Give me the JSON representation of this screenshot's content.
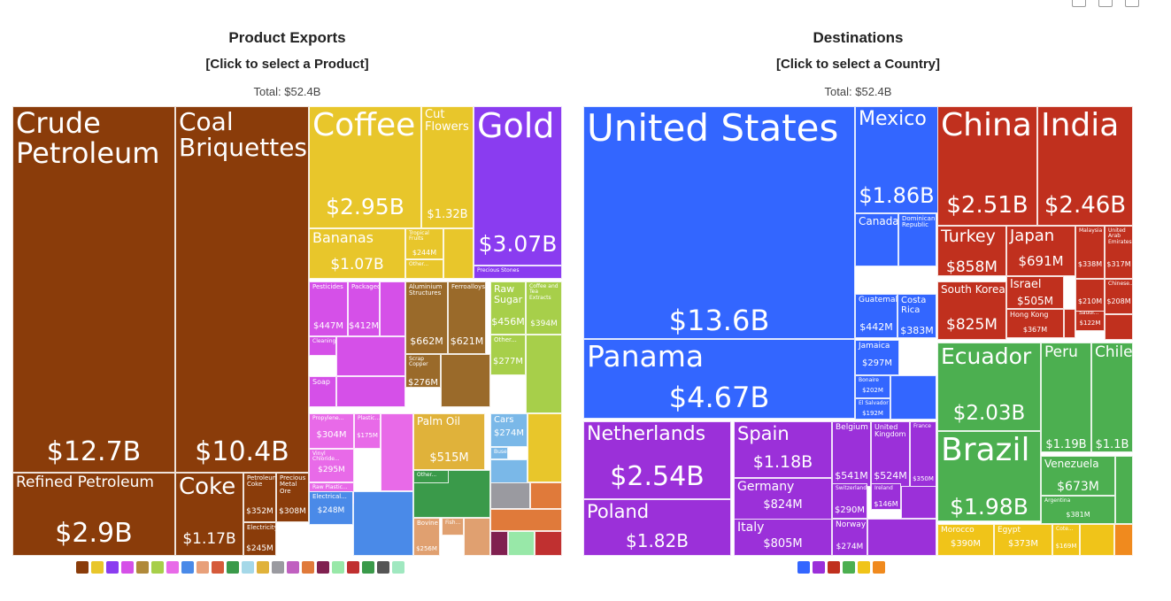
{
  "toolbar": {
    "icons": [
      "download-icon",
      "image-icon",
      "share-icon"
    ]
  },
  "products_panel": {
    "title": "Product Exports",
    "subtitle": "[Click to select a Product]",
    "total": "Total: $52.4B"
  },
  "destinations_panel": {
    "title": "Destinations",
    "subtitle": "[Click to select a Country]",
    "total": "Total: $52.4B"
  },
  "chart_data": [
    {
      "type": "treemap",
      "title": "Product Exports",
      "total": "$52.4B",
      "items": [
        {
          "name": "Crude Petroleum",
          "value": "$12.7B",
          "color": "#8a3c0a"
        },
        {
          "name": "Coal Briquettes",
          "value": "$10.4B",
          "color": "#8a3c0a"
        },
        {
          "name": "Refined Petroleum",
          "value": "$2.9B",
          "color": "#8a3c0a"
        },
        {
          "name": "Coke",
          "value": "$1.17B",
          "color": "#8a3c0a"
        },
        {
          "name": "Petroleum Coke",
          "value": "$352M",
          "color": "#8a3c0a"
        },
        {
          "name": "Precious Metal Ore",
          "value": "$308M",
          "color": "#8a3c0a"
        },
        {
          "name": "Electricity",
          "value": "$245M",
          "color": "#8a3c0a"
        },
        {
          "name": "Coffee",
          "value": "$2.95B",
          "color": "#e8c62b"
        },
        {
          "name": "Cut Flowers",
          "value": "$1.32B",
          "color": "#e8c62b"
        },
        {
          "name": "Bananas",
          "value": "$1.07B",
          "color": "#e8c62b"
        },
        {
          "name": "Tropical Fruits",
          "value": "$244M",
          "color": "#e8c62b"
        },
        {
          "name": "Other...",
          "value": "",
          "color": "#e8c62b"
        },
        {
          "name": "Gold",
          "value": "$3.07B",
          "color": "#8a3cf0"
        },
        {
          "name": "Precious Stones",
          "value": "",
          "color": "#8a3cf0"
        },
        {
          "name": "Pesticides",
          "value": "$447M",
          "color": "#d550e8"
        },
        {
          "name": "Packaged...",
          "value": "$412M",
          "color": "#d550e8"
        },
        {
          "name": "Cleaning...",
          "value": "$140M",
          "color": "#d550e8"
        },
        {
          "name": "Soap",
          "value": "",
          "color": "#d550e8"
        },
        {
          "name": "Aluminium Structures",
          "value": "$662M",
          "color": "#9a6a2a"
        },
        {
          "name": "Ferroalloys",
          "value": "$621M",
          "color": "#9a6a2a"
        },
        {
          "name": "Scrap Copper",
          "value": "$276M",
          "color": "#9a6a2a"
        },
        {
          "name": "Raw Sugar",
          "value": "$456M",
          "color": "#a7cf4a"
        },
        {
          "name": "Coffee and Tea Extracts",
          "value": "$394M",
          "color": "#a7cf4a"
        },
        {
          "name": "Other...",
          "value": "$277M",
          "color": "#a7cf4a"
        },
        {
          "name": "Propylene...",
          "value": "$304M",
          "color": "#e86ae8"
        },
        {
          "name": "Plastic...",
          "value": "$175M",
          "color": "#e86ae8"
        },
        {
          "name": "Vinyl Chloride...",
          "value": "$295M",
          "color": "#e86ae8"
        },
        {
          "name": "Raw Plastic...",
          "value": "",
          "color": "#e86ae8"
        },
        {
          "name": "Palm Oil",
          "value": "$515M",
          "color": "#e0b23a"
        },
        {
          "name": "Cars",
          "value": "$274M",
          "color": "#7ab8e8"
        },
        {
          "name": "Buses",
          "value": "",
          "color": "#7ab8e8"
        },
        {
          "name": "Electrical...",
          "value": "$248M",
          "color": "#4a8ae8"
        },
        {
          "name": "Other...",
          "value": "",
          "color": "#3a9a4a"
        },
        {
          "name": "Bovine",
          "value": "$256M",
          "color": "#e0a070"
        },
        {
          "name": "Fish...",
          "value": "",
          "color": "#e0a070"
        }
      ]
    },
    {
      "type": "treemap",
      "title": "Destinations",
      "total": "$52.4B",
      "items": [
        {
          "name": "United States",
          "value": "$13.6B",
          "color": "#3366ff"
        },
        {
          "name": "Panama",
          "value": "$4.67B",
          "color": "#3366ff"
        },
        {
          "name": "Mexico",
          "value": "$1.86B",
          "color": "#3366ff"
        },
        {
          "name": "Canada",
          "value": "$728M",
          "color": "#3366ff"
        },
        {
          "name": "Dominican Republic",
          "value": "$610M",
          "color": "#3366ff"
        },
        {
          "name": "Guatemala",
          "value": "$442M",
          "color": "#3366ff"
        },
        {
          "name": "Costa Rica",
          "value": "$383M",
          "color": "#3366ff"
        },
        {
          "name": "Jamaica",
          "value": "$297M",
          "color": "#3366ff"
        },
        {
          "name": "Bonaire",
          "value": "$202M",
          "color": "#3366ff"
        },
        {
          "name": "El Salvador",
          "value": "$192M",
          "color": "#3366ff"
        },
        {
          "name": "Netherlands",
          "value": "$2.54B",
          "color": "#9b30d9"
        },
        {
          "name": "Poland",
          "value": "$1.82B",
          "color": "#9b30d9"
        },
        {
          "name": "Spain",
          "value": "$1.18B",
          "color": "#9b30d9"
        },
        {
          "name": "Germany",
          "value": "$824M",
          "color": "#9b30d9"
        },
        {
          "name": "Italy",
          "value": "$805M",
          "color": "#9b30d9"
        },
        {
          "name": "Belgium",
          "value": "$541M",
          "color": "#9b30d9"
        },
        {
          "name": "United Kingdom",
          "value": "$524M",
          "color": "#9b30d9"
        },
        {
          "name": "France",
          "value": "$350M",
          "color": "#9b30d9"
        },
        {
          "name": "Switzerland",
          "value": "$290M",
          "color": "#9b30d9"
        },
        {
          "name": "Ireland",
          "value": "$146M",
          "color": "#9b30d9"
        },
        {
          "name": "Norway",
          "value": "$274M",
          "color": "#9b30d9"
        },
        {
          "name": "China",
          "value": "$2.51B",
          "color": "#c0301e"
        },
        {
          "name": "India",
          "value": "$2.46B",
          "color": "#c0301e"
        },
        {
          "name": "Turkey",
          "value": "$858M",
          "color": "#c0301e"
        },
        {
          "name": "South Korea",
          "value": "$825M",
          "color": "#c0301e"
        },
        {
          "name": "Japan",
          "value": "$691M",
          "color": "#c0301e"
        },
        {
          "name": "Israel",
          "value": "$505M",
          "color": "#c0301e"
        },
        {
          "name": "Hong Kong",
          "value": "$367M",
          "color": "#c0301e"
        },
        {
          "name": "Malaysia",
          "value": "$338M",
          "color": "#c0301e"
        },
        {
          "name": "United Arab Emirates",
          "value": "$317M",
          "color": "#c0301e"
        },
        {
          "name": "Chinese...",
          "value": "$208M",
          "color": "#c0301e"
        },
        {
          "name": "Saudi...",
          "value": "$122M",
          "color": "#c0301e"
        },
        {
          "name": "",
          "value": "$210M",
          "color": "#c0301e"
        },
        {
          "name": "Ecuador",
          "value": "$2.03B",
          "color": "#4caf50"
        },
        {
          "name": "Brazil",
          "value": "$1.98B",
          "color": "#4caf50"
        },
        {
          "name": "Peru",
          "value": "$1.19B",
          "color": "#4caf50"
        },
        {
          "name": "Chile",
          "value": "$1.1B",
          "color": "#4caf50"
        },
        {
          "name": "Venezuela",
          "value": "$673M",
          "color": "#4caf50"
        },
        {
          "name": "Argentina",
          "value": "$381M",
          "color": "#4caf50"
        },
        {
          "name": "Morocco",
          "value": "$390M",
          "color": "#f0c419"
        },
        {
          "name": "Egypt",
          "value": "$373M",
          "color": "#f0c419"
        },
        {
          "name": "Cote...",
          "value": "$169M",
          "color": "#f0c419"
        }
      ]
    }
  ],
  "legends": {
    "products": [
      "#8a3c0a",
      "#e8c62b",
      "#8a3cf0",
      "#d550e8",
      "#b08a3a",
      "#a7cf4a",
      "#e86ae8",
      "#4a8ae8",
      "#e8a07a",
      "#d55a3a",
      "#3a9a4a",
      "#a5d8e8",
      "#e0b23a",
      "#9a9aa0",
      "#c060c0",
      "#e07a3a",
      "#802050",
      "#98e8a8",
      "#c03030",
      "#3a9a4a",
      "#555",
      "#a0e8c0"
    ],
    "destinations": [
      "#3366ff",
      "#9b30d9",
      "#c0301e",
      "#4caf50",
      "#f0c419",
      "#f08a1e"
    ]
  }
}
